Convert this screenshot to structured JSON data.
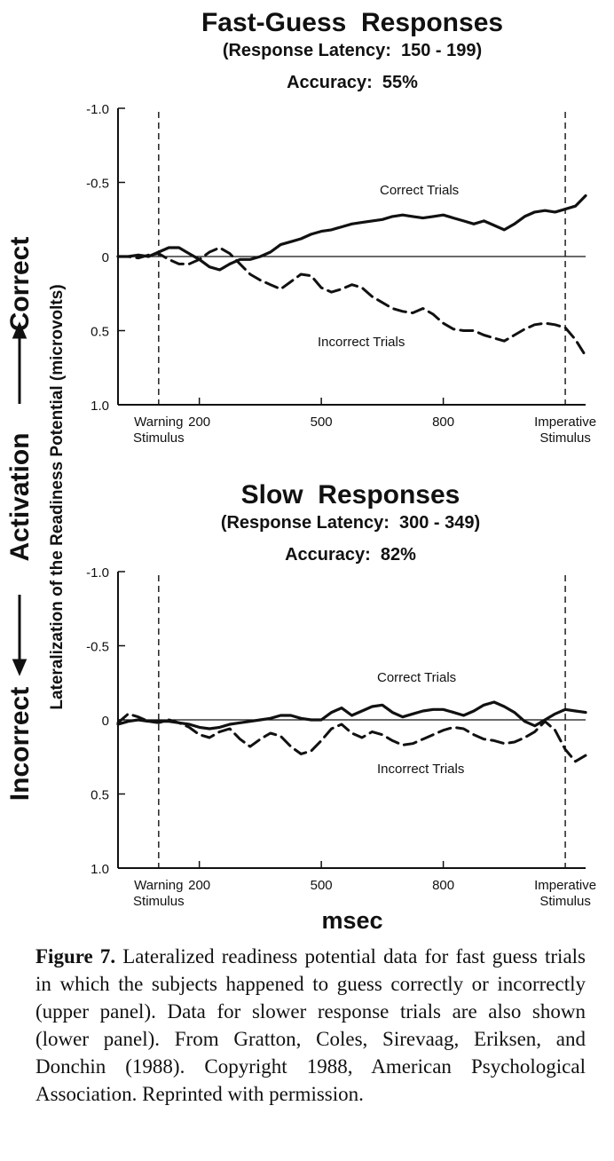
{
  "shared": {
    "left_label": {
      "incorrect": "Incorrect",
      "activation": "Activation",
      "correct": "Correct"
    },
    "y_label": "Lateralization of the Readiness Potential  (microvolts)",
    "x_label": "msec"
  },
  "caption": {
    "figure": "Figure 7.",
    "text": "Lateralized readiness potential data for fast guess trials in which the subjects happened to guess correctly or incorrectly (upper panel). Data for slower response trials are also shown (lower panel). From Gratton, Coles, Sirevaag, Eriksen, and Donchin (1988). Copyright 1988, American Psychological Association. Reprinted with permission."
  },
  "chart_data": [
    {
      "type": "line",
      "title": "Fast-Guess  Responses",
      "subtitle": "(Response Latency:  150 - 199)",
      "accuracy": "Accuracy:  55%",
      "ylim": [
        -1.0,
        1.0
      ],
      "y_inverted": true,
      "y_ticks": [
        "-1.0",
        "-0.5",
        "0",
        "0.5",
        "1.0"
      ],
      "xlim": [
        0,
        1150
      ],
      "x_ticks": [
        {
          "x": 200,
          "label": "200"
        },
        {
          "x": 500,
          "label": "500"
        },
        {
          "x": 800,
          "label": "800"
        }
      ],
      "markers": [
        {
          "x": 100,
          "label": [
            "Warning",
            "Stimulus"
          ]
        },
        {
          "x": 1100,
          "label": [
            "Imperative",
            "Stimulus"
          ]
        }
      ],
      "series": [
        {
          "name": "Correct Trials",
          "style": "solid",
          "x": [
            0,
            25,
            50,
            75,
            100,
            125,
            150,
            175,
            200,
            225,
            250,
            275,
            300,
            325,
            350,
            375,
            400,
            425,
            450,
            475,
            500,
            525,
            550,
            575,
            600,
            625,
            650,
            675,
            700,
            725,
            750,
            775,
            800,
            825,
            850,
            875,
            900,
            925,
            950,
            975,
            1000,
            1025,
            1050,
            1075,
            1100,
            1125,
            1150
          ],
          "values": [
            0,
            0.0,
            -0.01,
            0.0,
            -0.03,
            -0.06,
            -0.06,
            -0.02,
            0.02,
            0.07,
            0.09,
            0.05,
            0.02,
            0.02,
            0.0,
            -0.03,
            -0.08,
            -0.1,
            -0.12,
            -0.15,
            -0.17,
            -0.18,
            -0.2,
            -0.22,
            -0.23,
            -0.24,
            -0.25,
            -0.27,
            -0.28,
            -0.27,
            -0.26,
            -0.27,
            -0.28,
            -0.26,
            -0.24,
            -0.22,
            -0.24,
            -0.21,
            -0.18,
            -0.22,
            -0.27,
            -0.3,
            -0.31,
            -0.3,
            -0.32,
            -0.34,
            -0.41
          ]
        },
        {
          "name": "Incorrect Trials",
          "style": "dashed",
          "x": [
            0,
            25,
            50,
            75,
            100,
            125,
            150,
            175,
            200,
            225,
            250,
            275,
            300,
            325,
            350,
            375,
            400,
            425,
            450,
            475,
            500,
            525,
            550,
            575,
            600,
            625,
            650,
            675,
            700,
            725,
            750,
            775,
            800,
            825,
            850,
            875,
            900,
            925,
            950,
            975,
            1000,
            1025,
            1050,
            1075,
            1100,
            1125,
            1150
          ],
          "values": [
            0,
            0.0,
            0.01,
            -0.01,
            -0.02,
            0.02,
            0.05,
            0.05,
            0.02,
            -0.03,
            -0.06,
            -0.02,
            0.05,
            0.12,
            0.16,
            0.19,
            0.22,
            0.17,
            0.12,
            0.13,
            0.21,
            0.24,
            0.22,
            0.19,
            0.21,
            0.27,
            0.31,
            0.35,
            0.37,
            0.38,
            0.35,
            0.39,
            0.45,
            0.49,
            0.5,
            0.5,
            0.53,
            0.55,
            0.57,
            0.53,
            0.49,
            0.46,
            0.45,
            0.46,
            0.48,
            0.56,
            0.67
          ]
        }
      ]
    },
    {
      "type": "line",
      "title": "Slow  Responses",
      "subtitle": "(Response Latency:  300 - 349)",
      "accuracy": "Accuracy:  82%",
      "ylim": [
        -1.0,
        1.0
      ],
      "y_inverted": true,
      "y_ticks": [
        "-1.0",
        "-0.5",
        "0",
        "0.5",
        "1.0"
      ],
      "xlim": [
        0,
        1150
      ],
      "x_ticks": [
        {
          "x": 200,
          "label": "200"
        },
        {
          "x": 500,
          "label": "500"
        },
        {
          "x": 800,
          "label": "800"
        }
      ],
      "markers": [
        {
          "x": 100,
          "label": [
            "Warning",
            "Stimulus"
          ]
        },
        {
          "x": 1100,
          "label": [
            "Imperative",
            "Stimulus"
          ]
        }
      ],
      "series": [
        {
          "name": "Correct Trials",
          "style": "solid",
          "x": [
            0,
            25,
            50,
            75,
            100,
            125,
            150,
            175,
            200,
            225,
            250,
            275,
            300,
            325,
            350,
            375,
            400,
            425,
            450,
            475,
            500,
            525,
            550,
            575,
            600,
            625,
            650,
            675,
            700,
            725,
            750,
            775,
            800,
            825,
            850,
            875,
            900,
            925,
            950,
            975,
            1000,
            1025,
            1050,
            1075,
            1100,
            1125,
            1150
          ],
          "values": [
            0.03,
            0.01,
            0.0,
            0.01,
            0.01,
            0.01,
            0.02,
            0.03,
            0.05,
            0.06,
            0.05,
            0.03,
            0.02,
            0.01,
            0.0,
            -0.01,
            -0.03,
            -0.03,
            -0.01,
            0.0,
            0.0,
            -0.05,
            -0.08,
            -0.03,
            -0.06,
            -0.09,
            -0.1,
            -0.05,
            -0.02,
            -0.04,
            -0.06,
            -0.07,
            -0.07,
            -0.05,
            -0.03,
            -0.06,
            -0.1,
            -0.12,
            -0.09,
            -0.05,
            0.01,
            0.04,
            0.0,
            -0.04,
            -0.07,
            -0.06,
            -0.05
          ]
        },
        {
          "name": "Incorrect Trials",
          "style": "dashed",
          "x": [
            0,
            25,
            50,
            75,
            100,
            125,
            150,
            175,
            200,
            225,
            250,
            275,
            300,
            325,
            350,
            375,
            400,
            425,
            450,
            475,
            500,
            525,
            550,
            575,
            600,
            625,
            650,
            675,
            700,
            725,
            750,
            775,
            800,
            825,
            850,
            875,
            900,
            925,
            950,
            975,
            1000,
            1025,
            1050,
            1075,
            1100,
            1125,
            1150
          ],
          "values": [
            0.02,
            -0.04,
            -0.02,
            0.01,
            0.02,
            0.0,
            0.02,
            0.05,
            0.1,
            0.12,
            0.08,
            0.06,
            0.13,
            0.18,
            0.13,
            0.09,
            0.11,
            0.18,
            0.23,
            0.21,
            0.14,
            0.06,
            0.03,
            0.09,
            0.12,
            0.08,
            0.1,
            0.14,
            0.17,
            0.16,
            0.13,
            0.1,
            0.07,
            0.05,
            0.06,
            0.1,
            0.13,
            0.14,
            0.16,
            0.15,
            0.12,
            0.08,
            0.01,
            0.07,
            0.2,
            0.28,
            0.24
          ]
        }
      ]
    }
  ]
}
